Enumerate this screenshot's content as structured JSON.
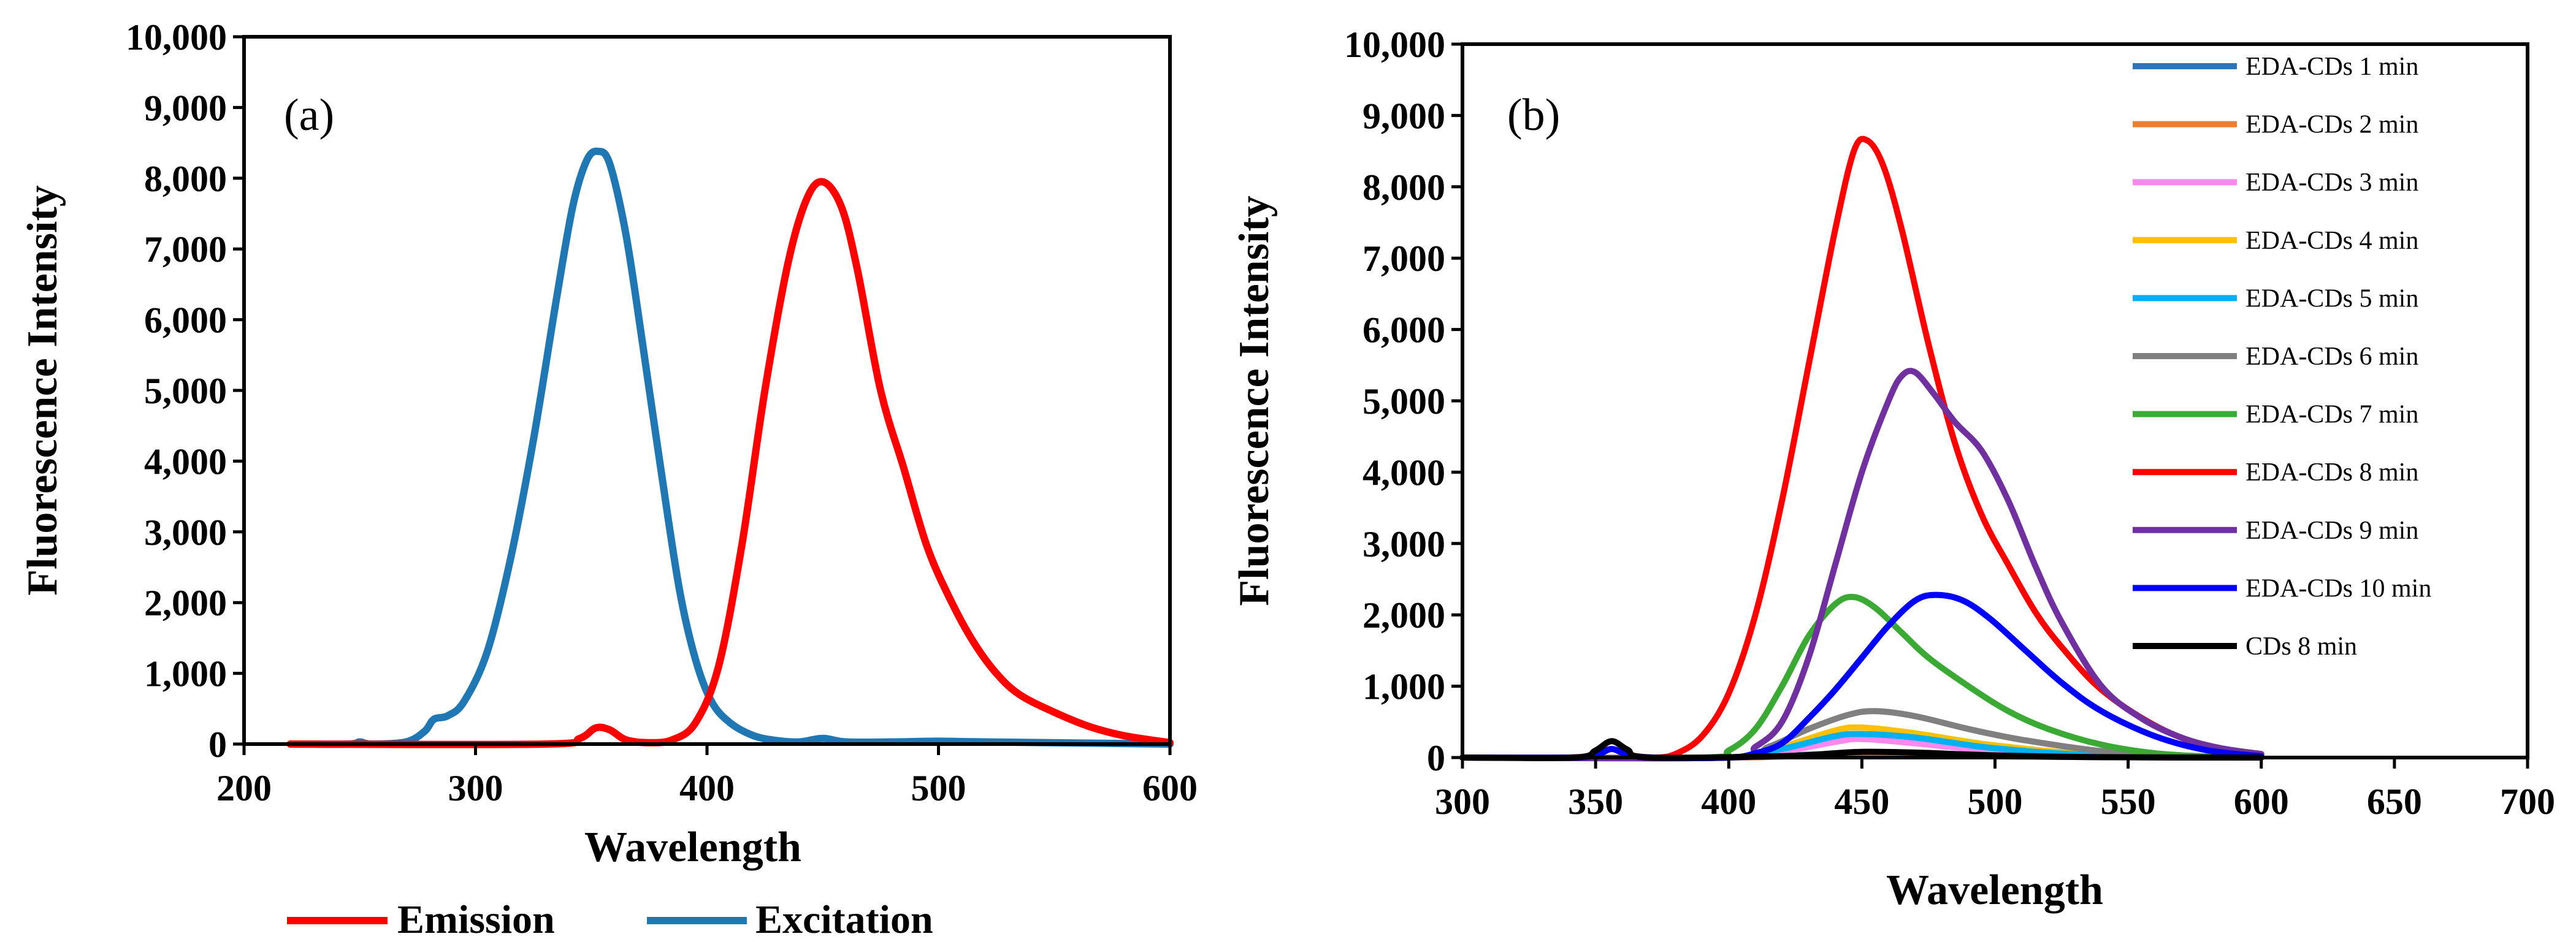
{
  "chart_data": [
    {
      "type": "line",
      "panel_label": "(a)",
      "xlabel": "Wavelength",
      "ylabel": "Fluorescence Intensity",
      "xlim": [
        200,
        600
      ],
      "ylim": [
        0,
        10000
      ],
      "xticks": [
        "200",
        "300",
        "400",
        "500",
        "600"
      ],
      "yticks": [
        "0",
        "1,000",
        "2,000",
        "3,000",
        "4,000",
        "5,000",
        "6,000",
        "7,000",
        "8,000",
        "9,000",
        "10,000"
      ],
      "legend_position": "bottom",
      "series": [
        {
          "name": "Emission",
          "color": "#ff0000",
          "points": [
            [
              220,
              0
            ],
            [
              330,
              0
            ],
            [
              345,
              80
            ],
            [
              352,
              230
            ],
            [
              358,
              200
            ],
            [
              365,
              60
            ],
            [
              375,
              20
            ],
            [
              385,
              60
            ],
            [
              395,
              300
            ],
            [
              405,
              1100
            ],
            [
              415,
              2800
            ],
            [
              425,
              5000
            ],
            [
              435,
              6800
            ],
            [
              443,
              7700
            ],
            [
              450,
              7950
            ],
            [
              458,
              7600
            ],
            [
              465,
              6700
            ],
            [
              475,
              5000
            ],
            [
              485,
              3900
            ],
            [
              495,
              2800
            ],
            [
              505,
              2050
            ],
            [
              515,
              1450
            ],
            [
              525,
              1000
            ],
            [
              535,
              700
            ],
            [
              550,
              450
            ],
            [
              565,
              250
            ],
            [
              580,
              120
            ],
            [
              600,
              20
            ]
          ]
        },
        {
          "name": "Excitation",
          "color": "#1f77b4",
          "points": [
            [
              220,
              0
            ],
            [
              245,
              0
            ],
            [
              250,
              30
            ],
            [
              255,
              0
            ],
            [
              270,
              30
            ],
            [
              278,
              180
            ],
            [
              282,
              350
            ],
            [
              288,
              400
            ],
            [
              295,
              600
            ],
            [
              305,
              1300
            ],
            [
              315,
              2600
            ],
            [
              325,
              4300
            ],
            [
              335,
              6300
            ],
            [
              342,
              7600
            ],
            [
              348,
              8250
            ],
            [
              353,
              8380
            ],
            [
              358,
              8200
            ],
            [
              365,
              7200
            ],
            [
              372,
              5700
            ],
            [
              380,
              3900
            ],
            [
              388,
              2200
            ],
            [
              395,
              1200
            ],
            [
              402,
              600
            ],
            [
              410,
              300
            ],
            [
              420,
              120
            ],
            [
              430,
              50
            ],
            [
              440,
              30
            ],
            [
              450,
              80
            ],
            [
              460,
              30
            ],
            [
              480,
              30
            ],
            [
              500,
              40
            ],
            [
              520,
              30
            ],
            [
              600,
              0
            ]
          ]
        }
      ]
    },
    {
      "type": "line",
      "panel_label": "(b)",
      "xlabel": "Wavelength",
      "ylabel": "Fluorescence Intensity",
      "xlim": [
        300,
        700
      ],
      "ylim": [
        0,
        10000
      ],
      "xticks": [
        "300",
        "350",
        "400",
        "450",
        "500",
        "550",
        "600",
        "650",
        "700"
      ],
      "yticks": [
        "0",
        "1,000",
        "2,000",
        "3,000",
        "4,000",
        "5,000",
        "6,000",
        "7,000",
        "8,000",
        "9,000",
        "10,000"
      ],
      "legend_position": "top-right",
      "series": [
        {
          "name": "EDA-CDs 1 min",
          "color": "#2e75b6",
          "points": [
            [
              300,
              0
            ],
            [
              400,
              0
            ],
            [
              430,
              40
            ],
            [
              450,
              60
            ],
            [
              480,
              40
            ],
            [
              520,
              10
            ],
            [
              600,
              0
            ]
          ]
        },
        {
          "name": "EDA-CDs 2 min",
          "color": "#ed7d31",
          "points": [
            [
              300,
              0
            ],
            [
              400,
              0
            ],
            [
              430,
              30
            ],
            [
              450,
              40
            ],
            [
              480,
              30
            ],
            [
              520,
              10
            ],
            [
              600,
              0
            ]
          ]
        },
        {
          "name": "EDA-CDs 3 min",
          "color": "#ff88ee",
          "points": [
            [
              300,
              0
            ],
            [
              400,
              0
            ],
            [
              420,
              80
            ],
            [
              440,
              220
            ],
            [
              450,
              260
            ],
            [
              470,
              200
            ],
            [
              500,
              90
            ],
            [
              540,
              20
            ],
            [
              600,
              0
            ]
          ]
        },
        {
          "name": "EDA-CDs 4 min",
          "color": "#ffc000",
          "points": [
            [
              300,
              0
            ],
            [
              400,
              0
            ],
            [
              420,
              150
            ],
            [
              440,
              380
            ],
            [
              450,
              420
            ],
            [
              470,
              340
            ],
            [
              500,
              170
            ],
            [
              540,
              40
            ],
            [
              600,
              0
            ]
          ]
        },
        {
          "name": "EDA-CDs 5 min",
          "color": "#00b0f0",
          "points": [
            [
              300,
              0
            ],
            [
              400,
              0
            ],
            [
              420,
              120
            ],
            [
              440,
              300
            ],
            [
              450,
              330
            ],
            [
              470,
              280
            ],
            [
              500,
              130
            ],
            [
              540,
              30
            ],
            [
              600,
              0
            ]
          ]
        },
        {
          "name": "EDA-CDs 6 min",
          "color": "#808080",
          "points": [
            [
              300,
              0
            ],
            [
              400,
              0
            ],
            [
              415,
              150
            ],
            [
              430,
              400
            ],
            [
              445,
              600
            ],
            [
              455,
              650
            ],
            [
              470,
              580
            ],
            [
              490,
              400
            ],
            [
              510,
              250
            ],
            [
              540,
              90
            ],
            [
              570,
              20
            ],
            [
              600,
              0
            ]
          ]
        },
        {
          "name": "EDA-CDs 7 min",
          "color": "#3aaa35",
          "points": [
            [
              300,
              0
            ],
            [
              390,
              0
            ],
            [
              400,
              100
            ],
            [
              410,
              400
            ],
            [
              420,
              1000
            ],
            [
              430,
              1700
            ],
            [
              440,
              2150
            ],
            [
              447,
              2250
            ],
            [
              455,
              2100
            ],
            [
              465,
              1750
            ],
            [
              475,
              1400
            ],
            [
              490,
              1000
            ],
            [
              505,
              650
            ],
            [
              520,
              400
            ],
            [
              540,
              180
            ],
            [
              560,
              60
            ],
            [
              580,
              15
            ],
            [
              600,
              0
            ]
          ]
        },
        {
          "name": "EDA-CDs 8 min",
          "color": "#ff0000",
          "points": [
            [
              300,
              0
            ],
            [
              340,
              0
            ],
            [
              350,
              50
            ],
            [
              356,
              120
            ],
            [
              362,
              40
            ],
            [
              372,
              0
            ],
            [
              380,
              50
            ],
            [
              390,
              300
            ],
            [
              400,
              900
            ],
            [
              410,
              2000
            ],
            [
              420,
              3600
            ],
            [
              430,
              5500
            ],
            [
              440,
              7400
            ],
            [
              447,
              8500
            ],
            [
              452,
              8650
            ],
            [
              458,
              8300
            ],
            [
              465,
              7400
            ],
            [
              475,
              5800
            ],
            [
              485,
              4400
            ],
            [
              495,
              3400
            ],
            [
              505,
              2700
            ],
            [
              515,
              2050
            ],
            [
              525,
              1550
            ],
            [
              540,
              950
            ],
            [
              560,
              450
            ],
            [
              580,
              150
            ],
            [
              600,
              20
            ]
          ]
        },
        {
          "name": "EDA-CDs 9 min",
          "color": "#7030a0",
          "points": [
            [
              300,
              0
            ],
            [
              400,
              0
            ],
            [
              410,
              150
            ],
            [
              420,
              500
            ],
            [
              430,
              1400
            ],
            [
              440,
              2700
            ],
            [
              450,
              4000
            ],
            [
              460,
              5000
            ],
            [
              465,
              5350
            ],
            [
              470,
              5400
            ],
            [
              477,
              5100
            ],
            [
              485,
              4700
            ],
            [
              495,
              4300
            ],
            [
              505,
              3600
            ],
            [
              515,
              2700
            ],
            [
              525,
              1900
            ],
            [
              540,
              1000
            ],
            [
              555,
              550
            ],
            [
              570,
              280
            ],
            [
              585,
              130
            ],
            [
              600,
              50
            ]
          ]
        },
        {
          "name": "EDA-CDs 10 min",
          "color": "#0000ff",
          "points": [
            [
              300,
              0
            ],
            [
              340,
              0
            ],
            [
              350,
              30
            ],
            [
              356,
              120
            ],
            [
              362,
              40
            ],
            [
              372,
              0
            ],
            [
              400,
              0
            ],
            [
              410,
              60
            ],
            [
              420,
              200
            ],
            [
              430,
              550
            ],
            [
              440,
              950
            ],
            [
              450,
              1400
            ],
            [
              460,
              1850
            ],
            [
              470,
              2200
            ],
            [
              478,
              2280
            ],
            [
              488,
              2200
            ],
            [
              498,
              1950
            ],
            [
              510,
              1550
            ],
            [
              525,
              1050
            ],
            [
              540,
              650
            ],
            [
              560,
              300
            ],
            [
              580,
              100
            ],
            [
              600,
              20
            ]
          ]
        },
        {
          "name": "CDs 8 min",
          "color": "#000000",
          "points": [
            [
              300,
              0
            ],
            [
              342,
              0
            ],
            [
              350,
              100
            ],
            [
              356,
              230
            ],
            [
              362,
              110
            ],
            [
              370,
              0
            ],
            [
              420,
              20
            ],
            [
              440,
              60
            ],
            [
              450,
              80
            ],
            [
              470,
              70
            ],
            [
              500,
              30
            ],
            [
              540,
              5
            ],
            [
              600,
              0
            ]
          ]
        }
      ]
    }
  ]
}
